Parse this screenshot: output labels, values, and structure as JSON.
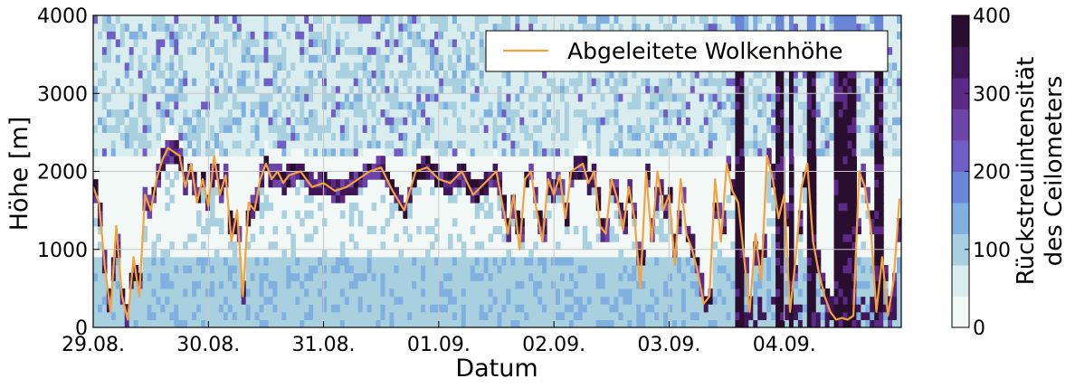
{
  "chart_data": {
    "type": "heatmap",
    "xlabel": "Datum",
    "ylabel": "Höhe [m]",
    "x_categories": [
      "29.08.",
      "30.08.",
      "31.08.",
      "01.09.",
      "02.09.",
      "03.09.",
      "04.09."
    ],
    "x_range_days": [
      0,
      7
    ],
    "ylim": [
      0,
      4000
    ],
    "yticks": [
      0,
      1000,
      2000,
      3000,
      4000
    ],
    "grid": true,
    "legend_position": "top-right",
    "colorbar": {
      "label_lines": [
        "Rückstreuintensität",
        "des Ceilometers"
      ],
      "range": [
        0,
        400
      ],
      "ticks": [
        0,
        100,
        200,
        300,
        400
      ],
      "bands": [
        "#f2f8f6",
        "#d9ecee",
        "#a9d0de",
        "#7fb0e0",
        "#6a86d8",
        "#6f5fc4",
        "#6d45a8",
        "#5b2a86",
        "#3f1656",
        "#2a0e2f"
      ]
    },
    "series": [
      {
        "name": "Abgeleitete Wolkenhöhe",
        "color": "#f3a23f",
        "x_days": [
          0.0,
          0.05,
          0.1,
          0.15,
          0.2,
          0.25,
          0.3,
          0.35,
          0.4,
          0.45,
          0.5,
          0.55,
          0.6,
          0.65,
          0.7,
          0.75,
          0.8,
          0.85,
          0.9,
          0.95,
          1.0,
          1.05,
          1.1,
          1.15,
          1.2,
          1.25,
          1.3,
          1.35,
          1.4,
          1.45,
          1.5,
          1.55,
          1.6,
          1.65,
          1.7,
          1.8,
          1.9,
          2.0,
          2.1,
          2.2,
          2.3,
          2.4,
          2.5,
          2.6,
          2.7,
          2.8,
          2.9,
          3.0,
          3.1,
          3.2,
          3.3,
          3.4,
          3.5,
          3.6,
          3.65,
          3.7,
          3.75,
          3.8,
          3.85,
          3.9,
          3.95,
          4.0,
          4.05,
          4.1,
          4.15,
          4.2,
          4.25,
          4.3,
          4.35,
          4.4,
          4.45,
          4.5,
          4.55,
          4.6,
          4.65,
          4.7,
          4.75,
          4.8,
          4.85,
          4.9,
          4.95,
          5.0,
          5.05,
          5.1,
          5.15,
          5.2,
          5.25,
          5.3,
          5.35,
          5.4,
          5.45,
          5.5,
          5.55,
          5.6,
          5.65,
          5.7,
          5.75,
          5.8,
          5.85,
          5.9,
          5.95,
          6.0,
          6.05,
          6.1,
          6.15,
          6.2,
          6.25,
          6.3,
          6.35,
          6.4,
          6.45,
          6.5,
          6.55,
          6.6,
          6.65,
          6.7,
          6.75,
          6.8,
          6.85,
          6.9,
          6.95,
          7.0
        ],
        "y_m": [
          1800,
          1600,
          800,
          200,
          1300,
          400,
          100,
          900,
          400,
          1700,
          1500,
          1900,
          2150,
          2300,
          2250,
          2200,
          1800,
          2100,
          1600,
          1900,
          1550,
          2200,
          1700,
          1950,
          1100,
          1500,
          400,
          1600,
          1500,
          1900,
          2100,
          1900,
          2000,
          1850,
          1950,
          2000,
          1800,
          1850,
          1750,
          1800,
          1900,
          2000,
          2050,
          1750,
          1500,
          2000,
          2050,
          1900,
          1850,
          2000,
          1700,
          1850,
          2000,
          1200,
          1700,
          1000,
          1900,
          2000,
          1500,
          1100,
          1900,
          1700,
          1950,
          1400,
          2000,
          2050,
          2100,
          1850,
          2000,
          1300,
          1200,
          1900,
          1650,
          1250,
          1800,
          1400,
          500,
          2000,
          1100,
          2000,
          1500,
          1700,
          800,
          1900,
          1200,
          1000,
          700,
          300,
          400,
          1900,
          1100,
          2100,
          1750,
          1600,
          900,
          200,
          1200,
          600,
          2200,
          1900,
          1400,
          1700,
          200,
          900,
          1800,
          2100,
          1100,
          700,
          400,
          200,
          100,
          120,
          100,
          150,
          2000,
          1800,
          1300,
          200,
          900,
          150,
          600,
          1650
        ]
      }
    ]
  }
}
